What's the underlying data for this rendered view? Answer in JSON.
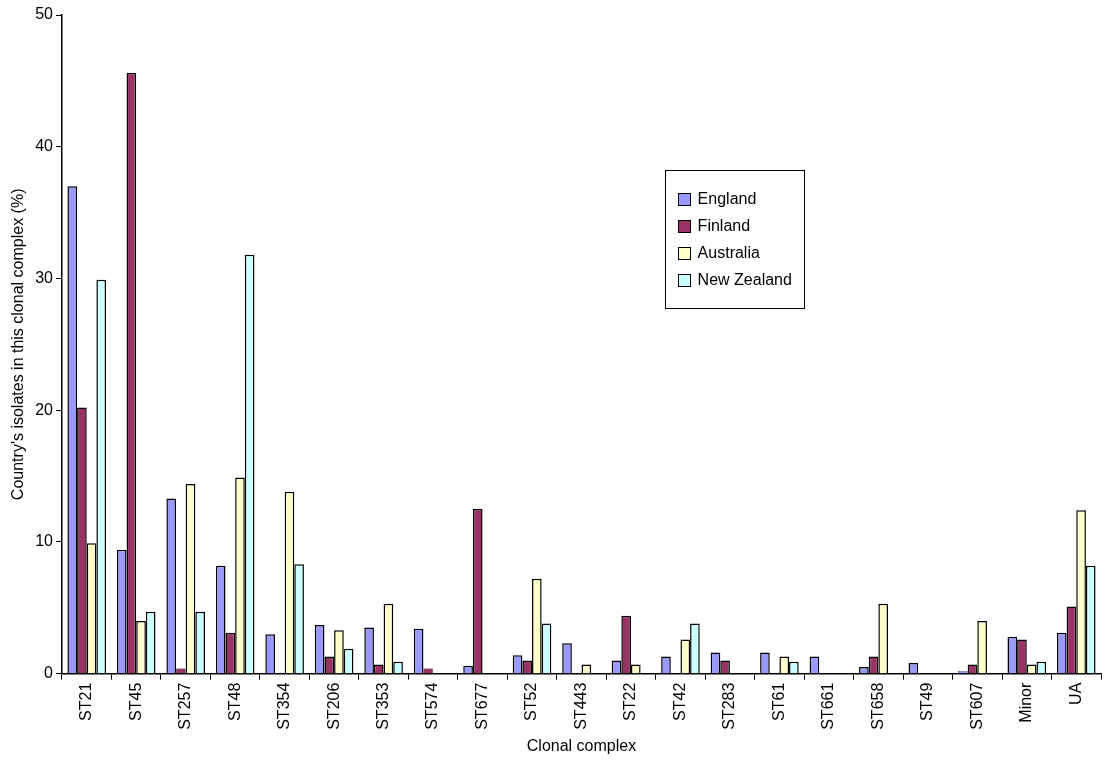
{
  "chart_data": {
    "type": "bar",
    "xlabel": "Clonal complex",
    "ylabel": "Country's isolates in this clonal complex (%)",
    "categories": [
      "ST21",
      "ST45",
      "ST257",
      "ST48",
      "ST354",
      "ST206",
      "ST353",
      "ST574",
      "ST677",
      "ST52",
      "ST443",
      "ST22",
      "ST42",
      "ST283",
      "ST61",
      "ST661",
      "ST658",
      "ST49",
      "ST607",
      "Minor",
      "UA"
    ],
    "series": [
      {
        "name": "England",
        "color": "#9999ff",
        "values": [
          37,
          9.4,
          13.3,
          8.2,
          3.0,
          3.7,
          3.5,
          3.4,
          0.6,
          1.4,
          2.3,
          1.0,
          1.3,
          1.6,
          1.6,
          1.3,
          0.5,
          0.8,
          0.2,
          2.8,
          3.1
        ]
      },
      {
        "name": "Finland",
        "color": "#993366",
        "values": [
          20.2,
          45.6,
          0.4,
          3.1,
          0,
          1.3,
          0.7,
          0.4,
          12.5,
          1.0,
          0,
          4.4,
          0,
          1.0,
          0,
          0,
          1.3,
          0,
          0.7,
          2.6,
          5.1
        ]
      },
      {
        "name": "Australia",
        "color": "#ffffcc",
        "values": [
          9.9,
          4.0,
          14.4,
          14.9,
          13.8,
          3.3,
          5.3,
          0,
          0,
          7.2,
          0.7,
          0.7,
          2.6,
          0,
          1.3,
          0,
          5.3,
          0,
          4.0,
          0.7,
          12.4
        ]
      },
      {
        "name": "New Zealand",
        "color": "#ccffff",
        "values": [
          29.9,
          4.7,
          4.7,
          31.8,
          8.3,
          1.9,
          0.9,
          0,
          0,
          3.8,
          0,
          0,
          3.8,
          0,
          0.9,
          0,
          0,
          0,
          0,
          0.9,
          8.2
        ]
      }
    ],
    "ylim": [
      0,
      50
    ],
    "yticks": [
      0,
      10,
      20,
      30,
      40,
      50
    ],
    "grid": false,
    "legend": "top right"
  }
}
